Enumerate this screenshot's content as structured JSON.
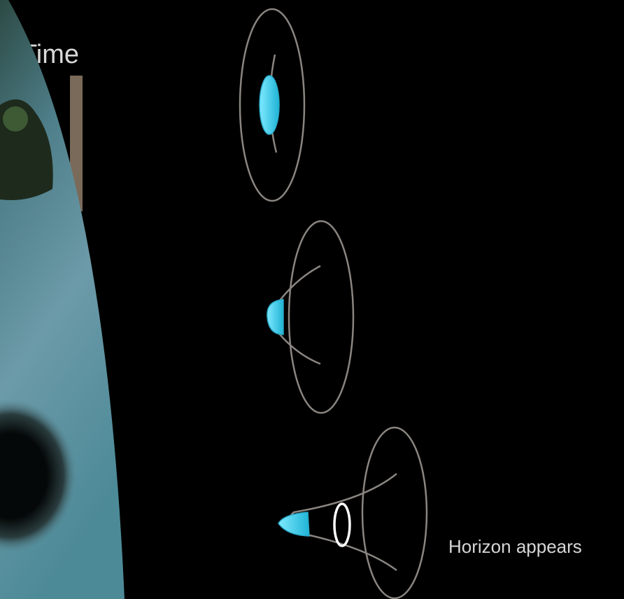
{
  "slide": {
    "title": "Time",
    "caption": "Horizon appears"
  }
}
